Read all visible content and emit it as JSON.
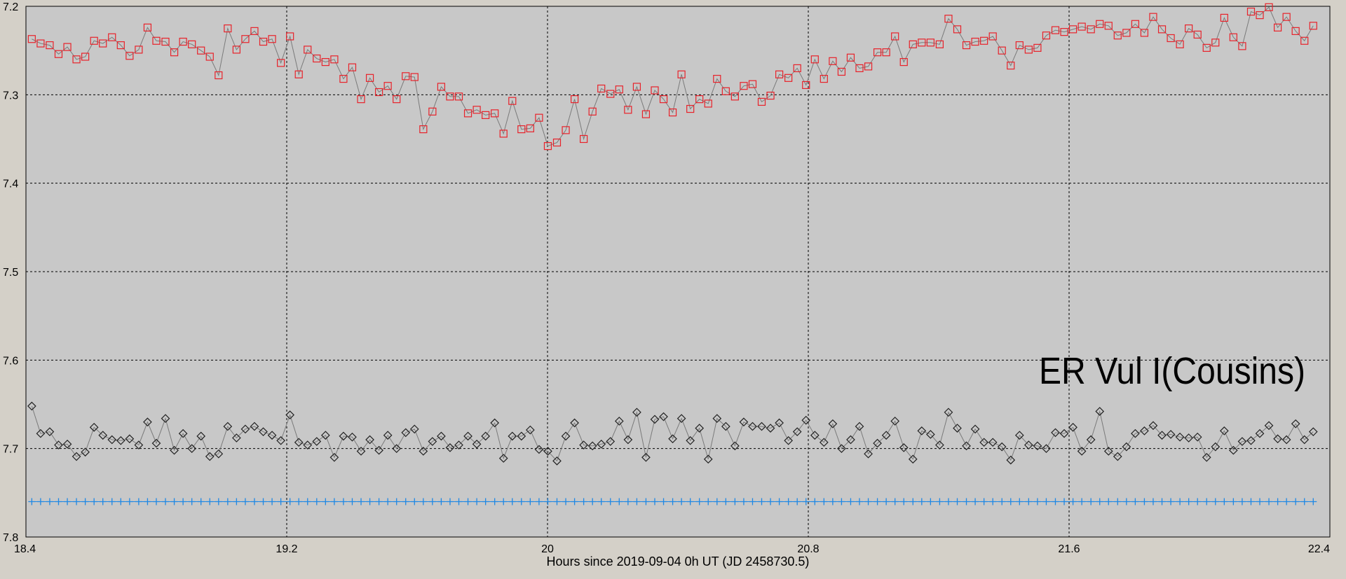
{
  "chart_data": {
    "type": "line",
    "xlabel": "Hours since 2019-09-04 0h UT (JD 2458730.5)",
    "annotation": "ER Vul I(Cousins)",
    "x": [
      18.418,
      18.445,
      18.473,
      18.5,
      18.527,
      18.555,
      18.582,
      18.609,
      18.636,
      18.664,
      18.691,
      18.718,
      18.746,
      18.773,
      18.8,
      18.828,
      18.855,
      18.882,
      18.909,
      18.937,
      18.964,
      18.991,
      19.019,
      19.046,
      19.073,
      19.101,
      19.128,
      19.155,
      19.182,
      19.21,
      19.237,
      19.264,
      19.292,
      19.319,
      19.346,
      19.374,
      19.401,
      19.428,
      19.455,
      19.483,
      19.51,
      19.537,
      19.565,
      19.592,
      19.619,
      19.647,
      19.674,
      19.701,
      19.728,
      19.756,
      19.783,
      19.81,
      19.838,
      19.865,
      19.892,
      19.92,
      19.947,
      19.974,
      20.001,
      20.029,
      20.056,
      20.083,
      20.111,
      20.138,
      20.165,
      20.193,
      20.22,
      20.247,
      20.274,
      20.302,
      20.329,
      20.356,
      20.384,
      20.411,
      20.438,
      20.466,
      20.493,
      20.52,
      20.547,
      20.575,
      20.602,
      20.629,
      20.657,
      20.684,
      20.711,
      20.739,
      20.766,
      20.793,
      20.82,
      20.848,
      20.875,
      20.902,
      20.93,
      20.957,
      20.984,
      21.012,
      21.039,
      21.066,
      21.093,
      21.121,
      21.148,
      21.175,
      21.203,
      21.23,
      21.257,
      21.285,
      21.312,
      21.339,
      21.366,
      21.394,
      21.421,
      21.448,
      21.476,
      21.503,
      21.53,
      21.558,
      21.585,
      21.612,
      21.639,
      21.667,
      21.694,
      21.721,
      21.749,
      21.776,
      21.803,
      21.831,
      21.858,
      21.885,
      21.912,
      21.94,
      21.967,
      21.994,
      22.022,
      22.049,
      22.076,
      22.104,
      22.131,
      22.158,
      22.185,
      22.213,
      22.24,
      22.267,
      22.295,
      22.322,
      22.349
    ],
    "series": [
      {
        "color": "#e8222a",
        "marker": "square",
        "line_color": "#7a7a7a",
        "values": [
          7.237,
          7.242,
          7.244,
          7.254,
          7.246,
          7.26,
          7.257,
          7.239,
          7.242,
          7.235,
          7.244,
          7.256,
          7.249,
          7.224,
          7.239,
          7.24,
          7.252,
          7.24,
          7.243,
          7.25,
          7.257,
          7.278,
          7.225,
          7.249,
          7.237,
          7.228,
          7.24,
          7.237,
          7.264,
          7.234,
          7.277,
          7.249,
          7.259,
          7.263,
          7.26,
          7.282,
          7.269,
          7.305,
          7.281,
          7.297,
          7.29,
          7.305,
          7.279,
          7.28,
          7.339,
          7.319,
          7.291,
          7.302,
          7.302,
          7.321,
          7.317,
          7.323,
          7.321,
          7.344,
          7.307,
          7.339,
          7.338,
          7.326,
          7.358,
          7.354,
          7.34,
          7.305,
          7.35,
          7.319,
          7.293,
          7.299,
          7.294,
          7.317,
          7.291,
          7.322,
          7.295,
          7.305,
          7.32,
          7.277,
          7.316,
          7.305,
          7.31,
          7.282,
          7.296,
          7.302,
          7.29,
          7.288,
          7.308,
          7.301,
          7.277,
          7.281,
          7.27,
          7.289,
          7.26,
          7.282,
          7.262,
          7.274,
          7.258,
          7.27,
          7.268,
          7.252,
          7.252,
          7.234,
          7.263,
          7.243,
          7.241,
          7.241,
          7.243,
          7.214,
          7.226,
          7.244,
          7.24,
          7.239,
          7.234,
          7.25,
          7.267,
          7.244,
          7.249,
          7.247,
          7.233,
          7.227,
          7.229,
          7.226,
          7.223,
          7.226,
          7.22,
          7.222,
          7.233,
          7.23,
          7.22,
          7.23,
          7.212,
          7.226,
          7.236,
          7.243,
          7.225,
          7.232,
          7.247,
          7.241,
          7.213,
          7.235,
          7.245,
          7.206,
          7.21,
          7.201,
          7.224,
          7.212,
          7.228,
          7.239,
          7.222
        ]
      },
      {
        "color": "#222222",
        "marker": "diamond",
        "line_color": "#7a7a7a",
        "values": [
          7.652,
          7.683,
          7.681,
          7.696,
          7.695,
          7.709,
          7.704,
          7.676,
          7.685,
          7.69,
          7.691,
          7.689,
          7.696,
          7.67,
          7.694,
          7.666,
          7.702,
          7.683,
          7.7,
          7.686,
          7.709,
          7.706,
          7.675,
          7.688,
          7.678,
          7.675,
          7.681,
          7.685,
          7.691,
          7.662,
          7.693,
          7.696,
          7.692,
          7.685,
          7.71,
          7.686,
          7.687,
          7.703,
          7.69,
          7.702,
          7.685,
          7.7,
          7.682,
          7.678,
          7.703,
          7.692,
          7.686,
          7.699,
          7.696,
          7.686,
          7.695,
          7.686,
          7.671,
          7.711,
          7.686,
          7.686,
          7.679,
          7.701,
          7.703,
          7.714,
          7.686,
          7.671,
          7.696,
          7.697,
          7.695,
          7.692,
          7.669,
          7.69,
          7.659,
          7.71,
          7.667,
          7.664,
          7.689,
          7.666,
          7.691,
          7.677,
          7.712,
          7.666,
          7.675,
          7.697,
          7.67,
          7.675,
          7.675,
          7.677,
          7.671,
          7.691,
          7.681,
          7.668,
          7.685,
          7.693,
          7.672,
          7.7,
          7.69,
          7.675,
          7.706,
          7.694,
          7.685,
          7.669,
          7.699,
          7.712,
          7.68,
          7.684,
          7.696,
          7.659,
          7.677,
          7.697,
          7.678,
          7.693,
          7.693,
          7.698,
          7.713,
          7.685,
          7.696,
          7.697,
          7.7,
          7.682,
          7.683,
          7.676,
          7.703,
          7.69,
          7.658,
          7.703,
          7.709,
          7.698,
          7.683,
          7.68,
          7.674,
          7.685,
          7.684,
          7.687,
          7.688,
          7.687,
          7.71,
          7.698,
          7.68,
          7.702,
          7.692,
          7.691,
          7.683,
          7.674,
          7.689,
          7.69,
          7.672,
          7.69,
          7.681
        ]
      },
      {
        "color": "#1e88e5",
        "marker": "plus",
        "line_color": "#1e88e5",
        "values": [
          7.76,
          7.76,
          7.76,
          7.76,
          7.76,
          7.76,
          7.76,
          7.76,
          7.76,
          7.76,
          7.76,
          7.76,
          7.76,
          7.76,
          7.76,
          7.76,
          7.76,
          7.76,
          7.76,
          7.76,
          7.76,
          7.76,
          7.76,
          7.76,
          7.76,
          7.76,
          7.76,
          7.76,
          7.76,
          7.76,
          7.76,
          7.76,
          7.76,
          7.76,
          7.76,
          7.76,
          7.76,
          7.76,
          7.76,
          7.76,
          7.76,
          7.76,
          7.76,
          7.76,
          7.76,
          7.76,
          7.76,
          7.76,
          7.76,
          7.76,
          7.76,
          7.76,
          7.76,
          7.76,
          7.76,
          7.76,
          7.76,
          7.76,
          7.76,
          7.76,
          7.76,
          7.76,
          7.76,
          7.76,
          7.76,
          7.76,
          7.76,
          7.76,
          7.76,
          7.76,
          7.76,
          7.76,
          7.76,
          7.76,
          7.76,
          7.76,
          7.76,
          7.76,
          7.76,
          7.76,
          7.76,
          7.76,
          7.76,
          7.76,
          7.76,
          7.76,
          7.76,
          7.76,
          7.76,
          7.76,
          7.76,
          7.76,
          7.76,
          7.76,
          7.76,
          7.76,
          7.76,
          7.76,
          7.76,
          7.76,
          7.76,
          7.76,
          7.76,
          7.76,
          7.76,
          7.76,
          7.76,
          7.76,
          7.76,
          7.76,
          7.76,
          7.76,
          7.76,
          7.76,
          7.76,
          7.76,
          7.76,
          7.76,
          7.76,
          7.76,
          7.76,
          7.76,
          7.76,
          7.76,
          7.76,
          7.76,
          7.76,
          7.76,
          7.76,
          7.76,
          7.76,
          7.76,
          7.76,
          7.76,
          7.76,
          7.76,
          7.76,
          7.76,
          7.76,
          7.76,
          7.76,
          7.76,
          7.76,
          7.76,
          7.76
        ]
      }
    ],
    "xlim": [
      18.4,
      22.4
    ],
    "xticks": [
      18.4,
      19.2,
      20,
      20.8,
      21.6,
      22.4
    ],
    "ylim": [
      7.2,
      7.8
    ],
    "y_inverted": true,
    "yticks": [
      7.2,
      7.3,
      7.4,
      7.5,
      7.6,
      7.7,
      7.8
    ],
    "grid": true,
    "annotation_color": "#e8101a"
  }
}
